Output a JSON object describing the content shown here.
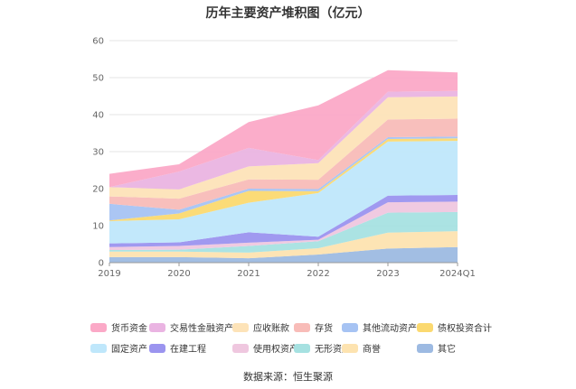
{
  "chart_data": {
    "type": "area",
    "stacked": true,
    "title": "历年主要资产堆积图（亿元）",
    "xlabel": "",
    "ylabel": "",
    "categories": [
      "2019",
      "2020",
      "2021",
      "2022",
      "2023",
      "2024Q1"
    ],
    "ylim": [
      0,
      60
    ],
    "yticks": [
      0,
      10,
      20,
      30,
      40,
      50,
      60
    ],
    "grid": true,
    "legend_position": "bottom",
    "series": [
      {
        "name": "其它",
        "color": "#9dbae2",
        "values": [
          1.5,
          1.5,
          1.2,
          2.2,
          3.8,
          4.2
        ]
      },
      {
        "name": "商誉",
        "color": "#fde3b0",
        "values": [
          1.5,
          1.5,
          1.5,
          1.7,
          4.3,
          4.3
        ]
      },
      {
        "name": "无形资产",
        "color": "#a6e1e1",
        "values": [
          0.4,
          0.5,
          1.8,
          1.9,
          5.4,
          5.2
        ]
      },
      {
        "name": "使用权资产",
        "color": "#efc7df",
        "values": [
          0.8,
          1.0,
          0.9,
          0.4,
          2.8,
          2.8
        ]
      },
      {
        "name": "在建工程",
        "color": "#9b94ef",
        "values": [
          1.0,
          1.0,
          2.8,
          0.8,
          1.8,
          1.8
        ]
      },
      {
        "name": "固定资产",
        "color": "#bfe7fb",
        "values": [
          6.0,
          6.2,
          8.0,
          11.8,
          14.6,
          14.6
        ]
      },
      {
        "name": "债权投资合计",
        "color": "#fbd970",
        "values": [
          0.2,
          1.6,
          3.2,
          0.5,
          0.7,
          0.7
        ]
      },
      {
        "name": "其他流动资产",
        "color": "#a6c3f3",
        "values": [
          4.5,
          1.0,
          0.6,
          0.6,
          0.5,
          0.5
        ]
      },
      {
        "name": "存货",
        "color": "#f8bcb8",
        "values": [
          2.0,
          3.0,
          2.5,
          2.5,
          4.8,
          4.8
        ]
      },
      {
        "name": "应收账款",
        "color": "#fde3b8",
        "values": [
          2.5,
          2.5,
          3.5,
          4.5,
          6.0,
          6.0
        ]
      },
      {
        "name": "交易性金融资产",
        "color": "#eab4e2",
        "values": [
          0.0,
          4.8,
          5.0,
          0.8,
          1.5,
          1.5
        ]
      },
      {
        "name": "货币资金",
        "color": "#fba9c7",
        "values": [
          3.6,
          2.0,
          7.0,
          14.8,
          5.8,
          5.0
        ]
      }
    ],
    "legend_order": [
      "货币资金",
      "交易性金融资产",
      "应收账款",
      "存货",
      "其他流动资产",
      "债权投资合计",
      "固定资产",
      "在建工程",
      "使用权资产",
      "无形资产",
      "商誉",
      "其它"
    ]
  },
  "source_text": "数据来源：恒生聚源"
}
